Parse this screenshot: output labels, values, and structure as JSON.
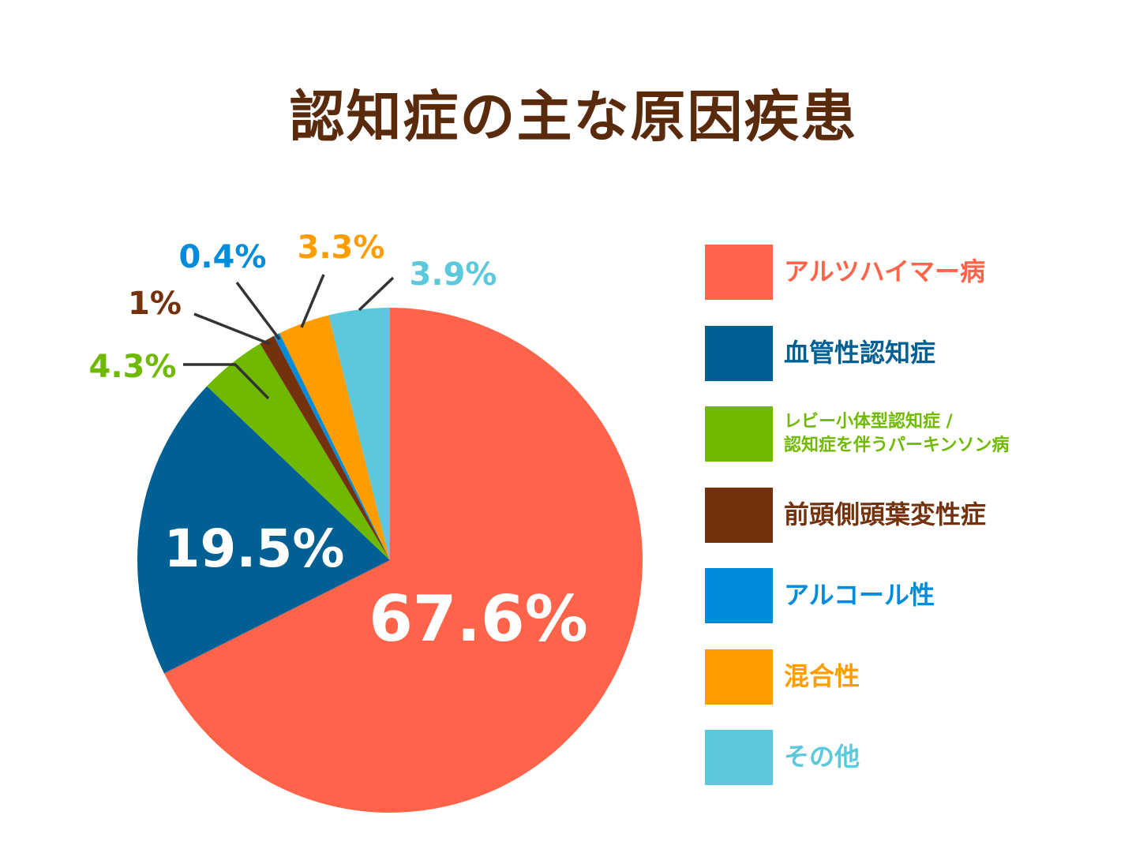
{
  "title": "認知症の主な原因疾患",
  "chart_data": {
    "type": "pie",
    "slices": [
      {
        "label": "アルツハイマー病",
        "value": 67.6,
        "display": "67.6%",
        "color": "#ff634a"
      },
      {
        "label": "血管性認知症",
        "value": 19.5,
        "display": "19.5%",
        "color": "#006094"
      },
      {
        "label": "レビー小体型認知症 /\n認知症を伴うパーキンソン病",
        "value": 4.3,
        "display": "4.3%",
        "color": "#6fba00"
      },
      {
        "label": "前頭側頭葉変性症",
        "value": 1.0,
        "display": "1%",
        "color": "#74310d"
      },
      {
        "label": "アルコール性",
        "value": 0.4,
        "display": "0.4%",
        "color": "#008cdb"
      },
      {
        "label": "混合性",
        "value": 3.3,
        "display": "3.3%",
        "color": "#ff9c00"
      },
      {
        "label": "その他",
        "value": 3.9,
        "display": "3.9%",
        "color": "#5bc8dc"
      }
    ],
    "start": "top",
    "direction": "clockwise",
    "legend": "right"
  }
}
